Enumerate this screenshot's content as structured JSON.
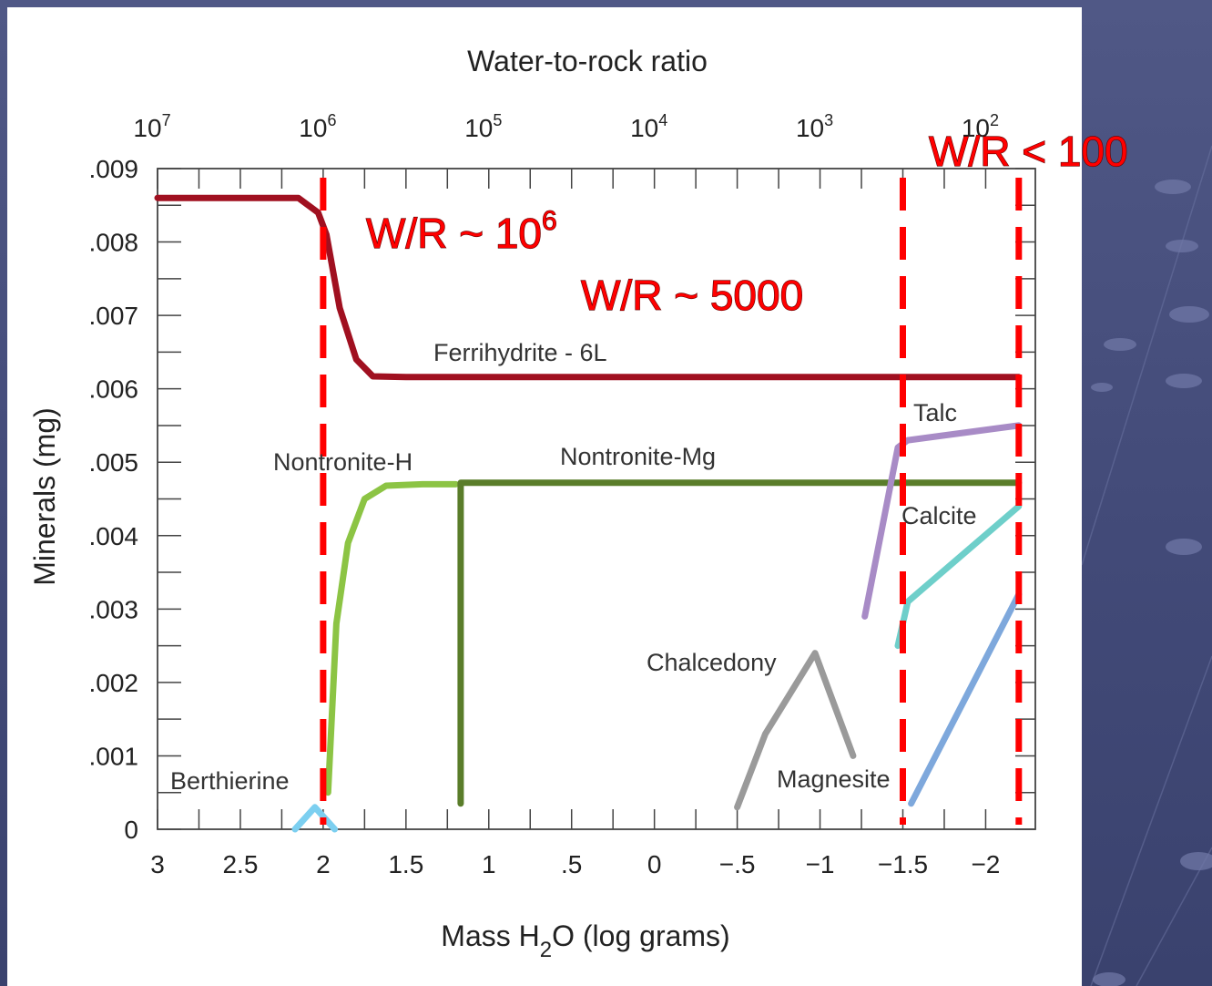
{
  "chart_data": {
    "type": "line",
    "title": "Water-to-rock ratio",
    "xlabel": {
      "pre": "Mass H",
      "sub": "2",
      "post": "O (log grams)"
    },
    "ylabel": "Minerals (mg)",
    "xlim": [
      3,
      -2.3
    ],
    "ylim": [
      0,
      0.009
    ],
    "x_ticks": [
      {
        "value": 3,
        "label": "3"
      },
      {
        "value": 2.5,
        "label": "2.5"
      },
      {
        "value": 2,
        "label": "2"
      },
      {
        "value": 1.5,
        "label": "1.5"
      },
      {
        "value": 1,
        "label": "1"
      },
      {
        "value": 0.5,
        "label": ".5"
      },
      {
        "value": 0,
        "label": "0"
      },
      {
        "value": -0.5,
        "label": "−.5"
      },
      {
        "value": -1,
        "label": "−1"
      },
      {
        "value": -1.5,
        "label": "−1.5"
      },
      {
        "value": -2,
        "label": "−2"
      }
    ],
    "y_ticks": [
      {
        "value": 0,
        "label": "0"
      },
      {
        "value": 0.001,
        "label": ".001"
      },
      {
        "value": 0.002,
        "label": ".002"
      },
      {
        "value": 0.003,
        "label": ".003"
      },
      {
        "value": 0.004,
        "label": ".004"
      },
      {
        "value": 0.005,
        "label": ".005"
      },
      {
        "value": 0.006,
        "label": ".006"
      },
      {
        "value": 0.007,
        "label": ".007"
      },
      {
        "value": 0.008,
        "label": ".008"
      },
      {
        "value": 0.009,
        "label": ".009"
      }
    ],
    "top_axis": {
      "title": "Water-to-rock ratio",
      "ticks": [
        {
          "x": 3,
          "base": "10",
          "exp": "7"
        },
        {
          "x": 2,
          "base": "10",
          "exp": "6"
        },
        {
          "x": 1,
          "base": "10",
          "exp": "5"
        },
        {
          "x": 0,
          "base": "10",
          "exp": "4"
        },
        {
          "x": -1,
          "base": "10",
          "exp": "3"
        },
        {
          "x": -2,
          "base": "10",
          "exp": "2"
        }
      ]
    },
    "series": [
      {
        "name": "Ferrihydrite - 6L",
        "color": "#a01020",
        "points": [
          [
            3,
            0.0086
          ],
          [
            2.15,
            0.0086
          ],
          [
            2.03,
            0.0084
          ],
          [
            1.98,
            0.0081
          ],
          [
            1.9,
            0.0071
          ],
          [
            1.8,
            0.0064
          ],
          [
            1.7,
            0.00617
          ],
          [
            1.5,
            0.00616
          ],
          [
            0,
            0.00616
          ],
          [
            -2.2,
            0.00616
          ]
        ]
      },
      {
        "name": "Nontronite-H",
        "color": "#8cc444",
        "points": [
          [
            1.97,
            0.0005
          ],
          [
            1.92,
            0.0028
          ],
          [
            1.85,
            0.0039
          ],
          [
            1.75,
            0.0045
          ],
          [
            1.62,
            0.00468
          ],
          [
            1.4,
            0.0047
          ],
          [
            1.2,
            0.0047
          ]
        ]
      },
      {
        "name": "Nontronite-Mg",
        "color": "#5a7d2a",
        "points": [
          [
            1.17,
            0.00035
          ],
          [
            1.17,
            0.00472
          ],
          [
            0,
            0.00472
          ],
          [
            -2.2,
            0.00472
          ]
        ]
      },
      {
        "name": "Berthierine",
        "color": "#7ccff0",
        "points": [
          [
            2.17,
            0
          ],
          [
            2.05,
            0.0003
          ],
          [
            1.93,
            0
          ]
        ]
      },
      {
        "name": "Talc",
        "color": "#a88bc6",
        "points": [
          [
            -1.27,
            0.0029
          ],
          [
            -1.47,
            0.0052
          ],
          [
            -1.53,
            0.0053
          ],
          [
            -2.2,
            0.0055
          ]
        ]
      },
      {
        "name": "Calcite",
        "color": "#6ecfca",
        "points": [
          [
            -1.47,
            0.0025
          ],
          [
            -1.53,
            0.0031
          ],
          [
            -2.2,
            0.0044
          ]
        ]
      },
      {
        "name": "Chalcedony",
        "color": "#9a9a9a",
        "points": [
          [
            -0.5,
            0.0003
          ],
          [
            -0.67,
            0.0013
          ],
          [
            -0.97,
            0.0024
          ],
          [
            -1.2,
            0.001
          ]
        ]
      },
      {
        "name": "Magnesite",
        "color": "#7ea8dc",
        "points": [
          [
            -1.55,
            0.00035
          ],
          [
            -2.2,
            0.0032
          ]
        ]
      }
    ],
    "labels": [
      {
        "series": "Ferrihydrite - 6L",
        "text": "Ferrihydrite - 6L"
      },
      {
        "series": "Nontronite-H",
        "text": "Nontronite-H"
      },
      {
        "series": "Nontronite-Mg",
        "text": "Nontronite-Mg"
      },
      {
        "series": "Talc",
        "text": "Talc"
      },
      {
        "series": "Calcite",
        "text": "Calcite"
      },
      {
        "series": "Chalcedony",
        "text": "Chalcedony"
      },
      {
        "series": "Magnesite",
        "text": "Magnesite"
      },
      {
        "series": "Berthierine",
        "text": "Berthierine"
      }
    ],
    "reference_lines": [
      {
        "x": 2,
        "color": "#ff0000",
        "style": "dashed"
      },
      {
        "x": -1.5,
        "color": "#ff0000",
        "style": "dashed"
      },
      {
        "x": -2.2,
        "color": "#ff0000",
        "style": "dashed"
      }
    ],
    "annotations": [
      {
        "base": "W/R ~ 10",
        "exp": "6"
      },
      {
        "base": "W/R ~ 5000",
        "exp": ""
      },
      {
        "base": "W/R < 100",
        "exp": ""
      }
    ],
    "grid": false,
    "legend": "none"
  }
}
